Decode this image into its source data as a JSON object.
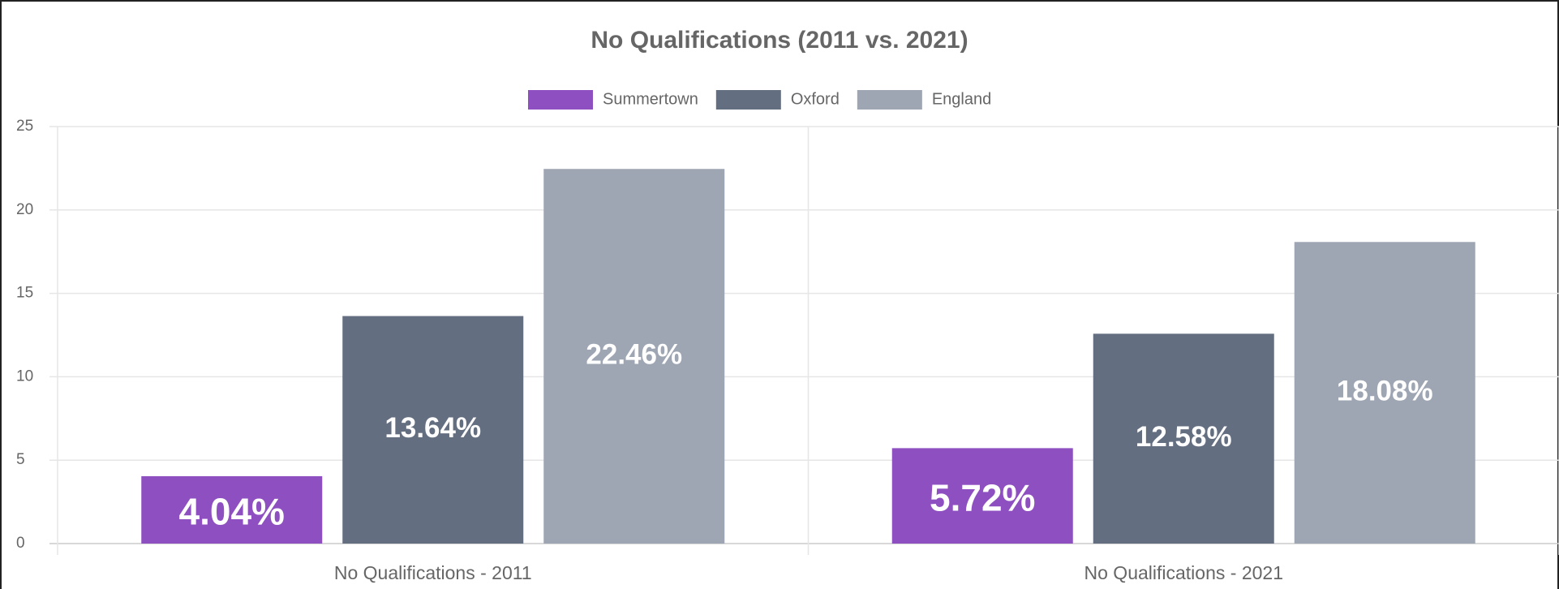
{
  "chart_data": {
    "type": "bar",
    "title": "No Qualifications (2011 vs. 2021)",
    "categories": [
      "No Qualifications - 2011",
      "No Qualifications - 2021"
    ],
    "series": [
      {
        "name": "Summertown",
        "color": "#8e4fc0",
        "values": [
          4.04,
          5.72
        ],
        "value_labels": [
          "4.04%",
          "5.72%"
        ]
      },
      {
        "name": "Oxford",
        "color": "#636e80",
        "values": [
          13.64,
          12.58
        ],
        "value_labels": [
          "13.64%",
          "12.58%"
        ]
      },
      {
        "name": "England",
        "color": "#9ea5b3",
        "values": [
          22.46,
          18.08
        ],
        "value_labels": [
          "22.46%",
          "18.08%"
        ]
      }
    ],
    "ylim": [
      0,
      25
    ],
    "yticks": [
      0,
      5,
      10,
      15,
      20,
      25
    ],
    "grid": true,
    "legend": "top"
  }
}
